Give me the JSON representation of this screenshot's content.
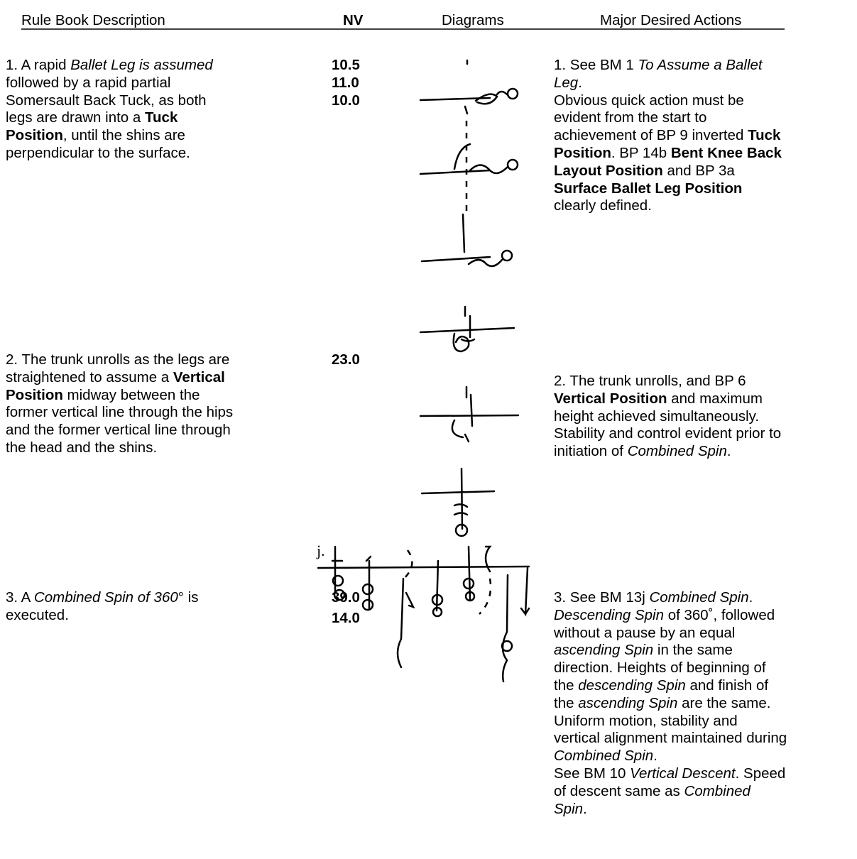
{
  "header": [
    "Rule Book Description",
    "NV",
    "Diagrams",
    "Major Desired Actions"
  ],
  "rows": [
    {
      "description": [
        [
          "1. A rapid ",
          {
            "text": "Ballet Leg is assumed",
            "style": "italic"
          }
        ],
        [
          "followed by a rapid partial"
        ],
        [
          "Somersault Back Tuck, as both"
        ],
        [
          "legs are drawn into a ",
          {
            "text": "Tuck",
            "style": "bold"
          }
        ],
        [
          {
            "text": "Position",
            "style": "bold"
          },
          ", until the shins are"
        ],
        [
          "perpendicular to the surface."
        ]
      ],
      "nv": [
        "10.5",
        "11.0",
        "10.0"
      ],
      "actions": [
        [
          "1. See BM 1 ",
          {
            "text": "To Assume a Ballet",
            "style": "italic"
          }
        ],
        [
          {
            "text": "Leg",
            "style": "italic"
          },
          "."
        ],
        [
          "Obvious quick action must be"
        ],
        [
          "evident from the start to"
        ],
        [
          "achievement of BP 9 inverted ",
          {
            "text": "Tuck",
            "style": "bold"
          }
        ],
        [
          {
            "text": "Position",
            "style": "bold"
          },
          ". BP 14b ",
          {
            "text": "Bent Knee Back",
            "style": "bold"
          }
        ],
        [
          {
            "text": "Layout Position",
            "style": "bold"
          },
          " and BP 3a"
        ],
        [
          {
            "text": "Surface Ballet Leg Position",
            "style": "bold"
          }
        ],
        [
          "clearly defined."
        ]
      ]
    },
    {
      "description": [
        [
          "2. The trunk unrolls as the legs are"
        ],
        [
          "straightened to assume a ",
          {
            "text": "Vertical",
            "style": "bold"
          }
        ],
        [
          {
            "text": "Position",
            "style": "bold"
          },
          " midway between the"
        ],
        [
          "former vertical line through the hips"
        ],
        [
          "and the former vertical line through"
        ],
        [
          "the head and the shins."
        ]
      ],
      "nv": [
        "23.0"
      ],
      "actions": [
        [
          "2. The trunk unrolls, and BP 6"
        ],
        [
          {
            "text": "Vertical Position",
            "style": "bold"
          },
          " and maximum"
        ],
        [
          "height achieved simultaneously."
        ],
        [
          "Stability and control evident prior to"
        ],
        [
          "initiation of ",
          {
            "text": "Combined Spin",
            "style": "italic"
          },
          "."
        ]
      ]
    },
    {
      "description": [
        [
          "3. A ",
          {
            "text": "Combined Spin of 360",
            "style": "italic"
          },
          "° is"
        ],
        [
          "executed."
        ]
      ],
      "nv": [
        "39.0",
        "14.0"
      ],
      "actions": [
        [
          "3. See BM 13j ",
          {
            "text": "Combined Spin",
            "style": "italic"
          },
          "."
        ],
        [
          {
            "text": "Descending Spin",
            "style": "italic"
          },
          " of 360˚, followed"
        ],
        [
          "without a pause by an equal"
        ],
        [
          {
            "text": "ascending Spin",
            "style": "italic"
          },
          " in the same"
        ],
        [
          "direction. Heights of beginning of"
        ],
        [
          "the ",
          {
            "text": "descending Spin",
            "style": "italic"
          },
          " and finish of"
        ],
        [
          "the ",
          {
            "text": "ascending Spin",
            "style": "italic"
          },
          " are the same."
        ],
        [
          "Uniform motion, stability and"
        ],
        [
          "vertical alignment maintained during"
        ],
        [
          {
            "text": "Combined Spin",
            "style": "italic"
          },
          "."
        ],
        [
          "See BM 10 ",
          {
            "text": "Vertical Descent",
            "style": "italic"
          },
          ". Speed"
        ],
        [
          "of descent same as ",
          {
            "text": "Combined",
            "style": "italic"
          }
        ],
        [
          {
            "text": "Spin",
            "style": "italic"
          },
          "."
        ]
      ]
    }
  ],
  "diagram_label": "j."
}
